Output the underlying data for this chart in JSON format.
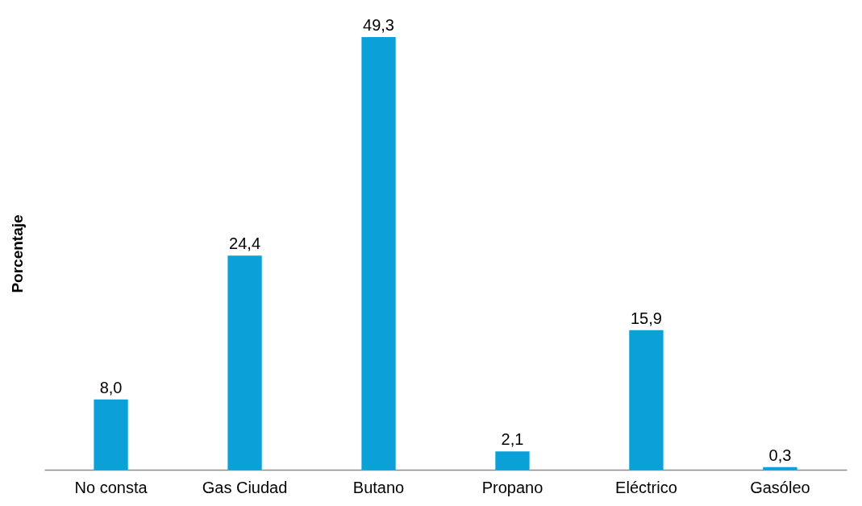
{
  "chart_data": {
    "type": "bar",
    "ylabel": "Porcentaje",
    "categories": [
      "No consta",
      "Gas Ciudad",
      "Butano",
      "Propano",
      "Eléctrico",
      "Gasóleo"
    ],
    "values": [
      8.0,
      24.4,
      49.3,
      2.1,
      15.9,
      0.3
    ],
    "value_labels": [
      "8,0",
      "24,4",
      "49,3",
      "2,1",
      "15,9",
      "0,3"
    ],
    "color": "#0ba0d8"
  }
}
